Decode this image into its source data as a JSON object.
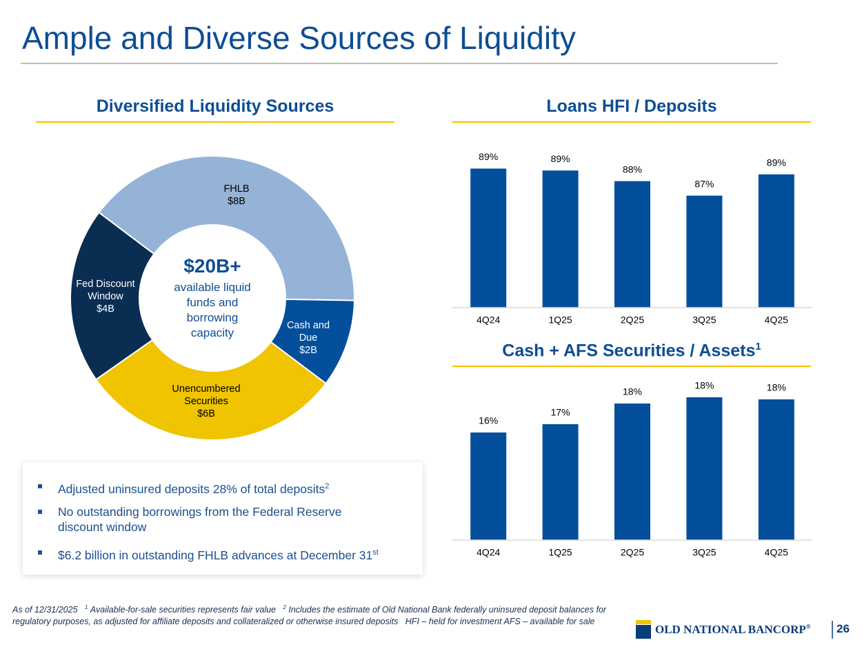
{
  "title": "Ample and Diverse Sources of Liquidity",
  "chart_data": [
    {
      "type": "pie",
      "title": "Diversified Liquidity Sources",
      "donut": true,
      "categories": [
        "FHLB",
        "Cash and Due",
        "Unencumbered Securities",
        "Fed Discount Window"
      ],
      "values": [
        8,
        2,
        6,
        4
      ],
      "value_labels": [
        "$8B",
        "$2B",
        "$6B",
        "$4B"
      ],
      "colors": [
        "#95b3d7",
        "#034f9c",
        "#f0c400",
        "#0a2d52"
      ],
      "center_title": "$20B+",
      "center_text": "available liquid funds and borrowing capacity"
    },
    {
      "type": "bar",
      "title": "Loans HFI / Deposits",
      "categories": [
        "4Q24",
        "1Q25",
        "2Q25",
        "3Q25",
        "4Q25"
      ],
      "values": [
        89.4,
        89.2,
        88.1,
        86.6,
        88.8
      ],
      "value_labels": [
        "89%",
        "89%",
        "88%",
        "87%",
        "89%"
      ],
      "color": "#034f9c",
      "ylim": [
        75,
        90
      ]
    },
    {
      "type": "bar",
      "title": "Cash + AFS Securities / Assets",
      "title_sup": "1",
      "categories": [
        "4Q24",
        "1Q25",
        "2Q25",
        "3Q25",
        "4Q25"
      ],
      "values": [
        16.2,
        16.6,
        17.6,
        17.9,
        17.8
      ],
      "value_labels": [
        "16%",
        "17%",
        "18%",
        "18%",
        "18%"
      ],
      "color": "#034f9c",
      "ylim": [
        11,
        18.5
      ]
    }
  ],
  "bullets": [
    {
      "text": "Adjusted uninsured deposits 28% of total deposits",
      "sup": "2"
    },
    {
      "text": "No outstanding borrowings from the Federal Reserve discount window"
    },
    {
      "text": "$6.2 billion in outstanding FHLB advances at December 31",
      "sup": "st"
    }
  ],
  "footnotes": {
    "as_of": "As of 12/31/2025",
    "notes": [
      {
        "mark": "1",
        "text": "Available-for-sale securities represents fair value"
      },
      {
        "mark": "2",
        "text": "Includes the estimate of Old National Bank federally uninsured deposit balances for regulatory purposes, as adjusted for affiliate deposits and collateralized or otherwise insured deposits"
      }
    ],
    "abbreviations": [
      "HFI – held for investment",
      "AFS – available for sale"
    ]
  },
  "logo": {
    "name": "OLD NATIONAL BANCORP",
    "mark": "®"
  },
  "page_number": "26"
}
